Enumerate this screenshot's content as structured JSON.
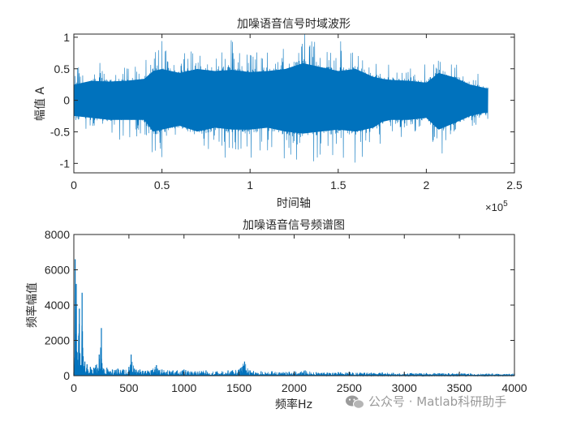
{
  "colors": {
    "series": "#0072BD",
    "axis": "#262626",
    "watermark": "#9a9a9a"
  },
  "watermark": {
    "icon": "wechat-icon",
    "text": "公众号 · Matlab科研助手"
  },
  "chart_data": [
    {
      "type": "line",
      "title": "加噪语音信号时域波形",
      "xlabel": "时间轴",
      "ylabel": "幅值 A",
      "xlim": [
        0,
        250000
      ],
      "ylim": [
        -1.15,
        1.05
      ],
      "xticks": [
        0,
        50000,
        100000,
        150000,
        200000,
        250000
      ],
      "xtick_labels": [
        "0",
        "0.5",
        "1",
        "1.5",
        "2",
        "2.5"
      ],
      "x_exponent_label": "×10",
      "x_exponent_power": "5",
      "yticks": [
        -1,
        -0.5,
        0,
        0.5,
        1
      ],
      "ytick_labels": [
        "-1",
        "-0.5",
        "0",
        "0.5",
        "1"
      ],
      "grid": false,
      "series": [
        {
          "x": [
            0,
            10000,
            20000,
            30000,
            40000,
            45000,
            50000,
            60000,
            70000,
            80000,
            90000,
            100000,
            110000,
            120000,
            130000,
            140000,
            150000,
            160000,
            170000,
            175000,
            180000,
            190000,
            200000,
            207000,
            215000,
            225000,
            235000
          ],
          "upper": [
            0.4,
            0.5,
            0.48,
            0.5,
            0.55,
            0.75,
            0.8,
            0.7,
            0.8,
            0.75,
            0.78,
            0.72,
            0.75,
            0.8,
            0.95,
            0.85,
            0.75,
            0.8,
            0.6,
            0.55,
            0.52,
            0.5,
            0.45,
            0.7,
            0.6,
            0.4,
            0.3
          ],
          "lower": [
            -0.4,
            -0.45,
            -0.5,
            -0.5,
            -0.5,
            -0.8,
            -0.75,
            -0.65,
            -0.8,
            -0.7,
            -0.75,
            -0.75,
            -0.7,
            -0.8,
            -0.85,
            -0.8,
            -0.75,
            -0.8,
            -0.7,
            -0.55,
            -0.5,
            -0.5,
            -0.45,
            -0.75,
            -0.6,
            -0.4,
            -0.3
          ]
        }
      ]
    },
    {
      "type": "line",
      "title": "加噪语音信号频谱图",
      "xlabel": "频率Hz",
      "ylabel": "频率幅值",
      "xlim": [
        0,
        4000
      ],
      "ylim": [
        0,
        8000
      ],
      "xticks": [
        0,
        500,
        1000,
        1500,
        2000,
        2500,
        3000,
        3500,
        4000
      ],
      "xtick_labels": [
        "0",
        "500",
        "1000",
        "1500",
        "2000",
        "2500",
        "3000",
        "3500",
        "4000"
      ],
      "yticks": [
        0,
        2000,
        4000,
        6000,
        8000
      ],
      "ytick_labels": [
        "0",
        "2000",
        "4000",
        "6000",
        "8000"
      ],
      "grid": false,
      "series": [
        {
          "x": [
            0,
            12,
            22,
            35,
            50,
            60,
            75,
            85,
            100,
            120,
            150,
            180,
            200,
            230,
            250,
            270,
            300,
            350,
            400,
            450,
            500,
            520,
            550,
            600,
            700,
            750,
            800,
            900,
            1000,
            1100,
            1200,
            1300,
            1400,
            1500,
            1550,
            1600,
            1700,
            1800,
            1900,
            2000,
            2100,
            2200,
            2300,
            2400,
            2500,
            2600,
            2700,
            2800,
            2900,
            3000,
            3200,
            3400,
            3600,
            3800,
            4000
          ],
          "y": [
            200,
            6600,
            5200,
            900,
            3800,
            600,
            4700,
            1100,
            800,
            650,
            500,
            450,
            600,
            1200,
            2700,
            400,
            450,
            350,
            400,
            350,
            500,
            1200,
            400,
            350,
            300,
            600,
            350,
            300,
            350,
            250,
            300,
            250,
            300,
            350,
            800,
            300,
            250,
            250,
            200,
            250,
            300,
            200,
            180,
            200,
            200,
            180,
            170,
            180,
            160,
            150,
            150,
            140,
            130,
            120,
            120
          ]
        }
      ]
    }
  ]
}
